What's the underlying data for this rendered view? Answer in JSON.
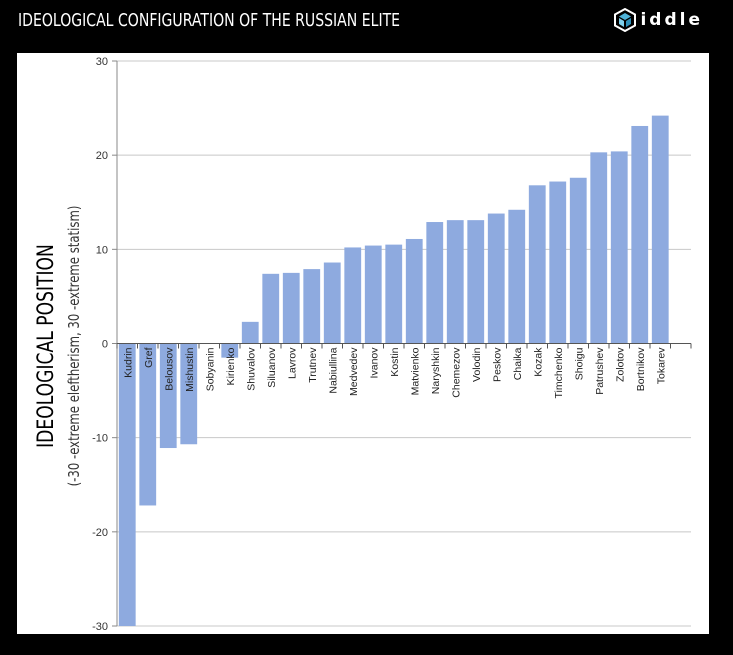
{
  "header": {
    "title": "IDEOLOGICAL CONFIGURATION OF THE RUSSIAN ELITE",
    "logo_text": "iddle",
    "logo_icon": "riddle-cube-icon"
  },
  "chart_data": {
    "type": "bar",
    "title": "IDEOLOGICAL CONFIGURATION OF THE RUSSIAN ELITE",
    "ylabel": "IDEOLOGICAL POSITION",
    "ylabel_sub": "(-30 -extreme eleftherism, 30 -extreme statism)",
    "xlabel": "",
    "ylim": [
      -30,
      30
    ],
    "yticks": [
      30,
      20,
      10,
      0,
      -10,
      -20,
      -30
    ],
    "grid": true,
    "bar_color": "#8eaadf",
    "categories": [
      "Kudrin",
      "Gref",
      "Belousov",
      "Mishustin",
      "Sobyanin",
      "Kirienko",
      "Shuvalov",
      "Siluanov",
      "Lavrov",
      "Trutnev",
      "Nabiullina",
      "Medvedev",
      "Ivanov",
      "Kostin",
      "Matvienko",
      "Naryshkin",
      "Chemezov",
      "Volodin",
      "Peskov",
      "Chaika",
      "Kozak",
      "Timchenko",
      "Shoigu",
      "Patrushev",
      "Zolotov",
      "Bortnikov",
      "Tokarev"
    ],
    "values": [
      -30,
      -17.2,
      -11.1,
      -10.7,
      0,
      -1.5,
      2.3,
      7.4,
      7.5,
      7.9,
      8.6,
      10.2,
      10.4,
      10.5,
      11.1,
      12.9,
      13.1,
      13.1,
      13.8,
      14.2,
      16.8,
      17.2,
      17.6,
      20.3,
      20.4,
      23.1,
      24.2
    ]
  }
}
